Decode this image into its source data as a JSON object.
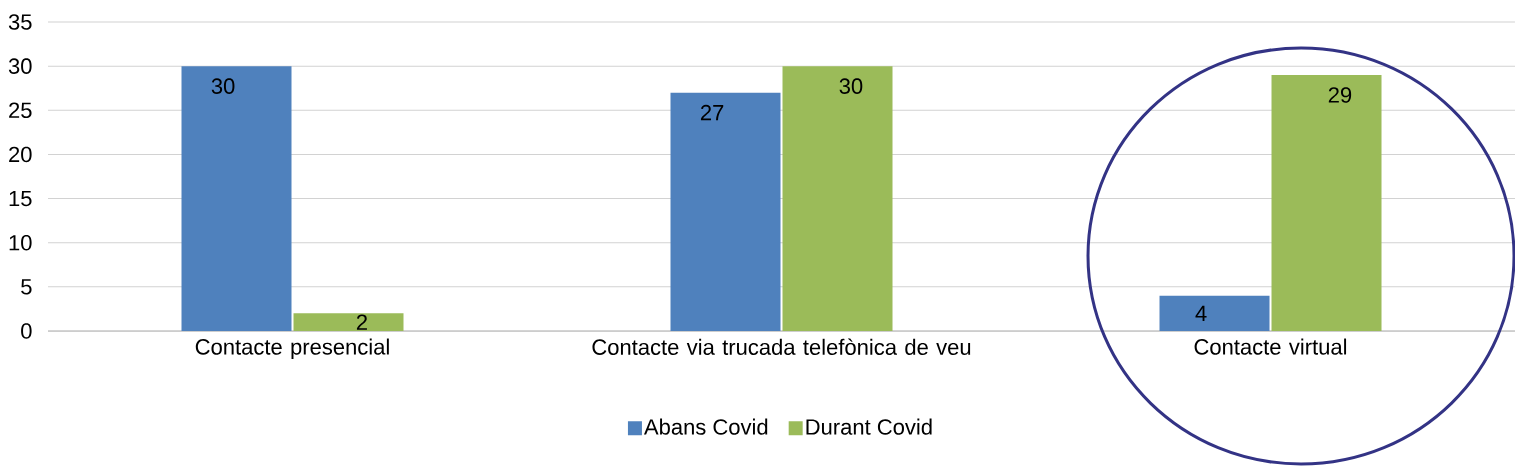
{
  "chart_data": {
    "type": "bar",
    "categories": [
      "Contacte presencial",
      "Contacte via trucada telefònica de veu",
      "Contacte virtual"
    ],
    "series": [
      {
        "name": "Abans Covid",
        "color": "#4f81bd",
        "values": [
          30,
          27,
          4
        ]
      },
      {
        "name": "Durant Covid",
        "color": "#9bbb59",
        "values": [
          2,
          30,
          29
        ]
      }
    ],
    "ylim": [
      0,
      35
    ],
    "yticks": [
      0,
      5,
      10,
      15,
      20,
      25,
      30,
      35
    ],
    "grid": "y",
    "legend": "bottom",
    "data_labels": true
  }
}
